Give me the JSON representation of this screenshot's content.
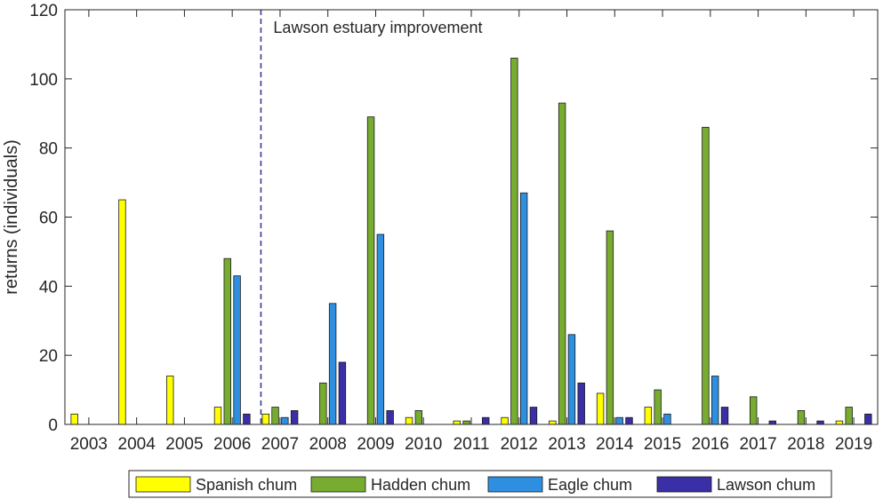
{
  "chart_data": {
    "type": "bar",
    "categories": [
      "2003",
      "2004",
      "2005",
      "2006",
      "2007",
      "2008",
      "2009",
      "2010",
      "2011",
      "2012",
      "2013",
      "2014",
      "2015",
      "2016",
      "2017",
      "2018",
      "2019"
    ],
    "ylabel": "returns (individuals)",
    "ylim": [
      0,
      120
    ],
    "yticks": [
      0,
      20,
      40,
      60,
      80,
      100,
      120
    ],
    "grid": false,
    "legend_position": "bottom",
    "annotation": {
      "text": "Lawson estuary improvement",
      "x": 2006.6,
      "style": "dashed-vertical-line",
      "color": "#3b3b8f"
    },
    "series": [
      {
        "name": "Spanish chum",
        "color": "#ffff00",
        "values": [
          3,
          65,
          14,
          5,
          3,
          0,
          0,
          2,
          1,
          2,
          1,
          9,
          5,
          0,
          0,
          0,
          1
        ]
      },
      {
        "name": "Hadden chum",
        "color": "#77ac30",
        "values": [
          0,
          0,
          0,
          48,
          5,
          12,
          89,
          4,
          1,
          106,
          93,
          56,
          10,
          86,
          8,
          4,
          5
        ]
      },
      {
        "name": "Eagle chum",
        "color": "#2e8fe0",
        "values": [
          0,
          0,
          0,
          43,
          2,
          35,
          55,
          0,
          0,
          67,
          26,
          2,
          3,
          14,
          0,
          0,
          0
        ]
      },
      {
        "name": "Lawson chum",
        "color": "#3a2fa6",
        "values": [
          0,
          0,
          0,
          3,
          4,
          18,
          4,
          0,
          2,
          5,
          12,
          2,
          0,
          5,
          1,
          1,
          3
        ]
      }
    ]
  }
}
